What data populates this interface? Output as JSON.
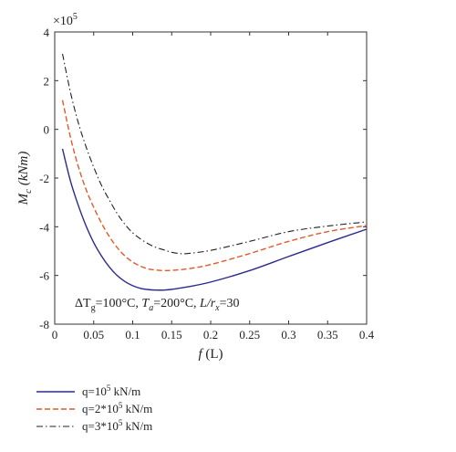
{
  "chart_data": {
    "type": "line",
    "title": "",
    "xlabel": "f (L)",
    "ylabel": "M_c (kNm)",
    "y_multiplier": "×10^5",
    "xlim": [
      0,
      0.4
    ],
    "ylim": [
      -8,
      4
    ],
    "x_ticks": [
      0,
      0.05,
      0.1,
      0.15,
      0.2,
      0.25,
      0.3,
      0.35,
      0.4
    ],
    "x_tick_labels": [
      "0",
      "0.05",
      "0.1",
      "0.15",
      "0.2",
      "0.25",
      "0.3",
      "0.35",
      "0.4"
    ],
    "y_ticks": [
      -8,
      -6,
      -4,
      -2,
      0,
      2,
      4
    ],
    "y_tick_labels": [
      "-8",
      "-6",
      "-4",
      "-2",
      "0",
      "2",
      "4"
    ],
    "grid": false,
    "legend_placement": "below",
    "annotation": "ΔT_g=100°C, T_a=200°C, L/r_x=30",
    "series": [
      {
        "name": "q=10^5 kN/m",
        "color": "#2b2a8f",
        "dash": "solid",
        "x": [
          0.01,
          0.02,
          0.03,
          0.04,
          0.05,
          0.06,
          0.07,
          0.08,
          0.09,
          0.1,
          0.11,
          0.12,
          0.13,
          0.14,
          0.15,
          0.17,
          0.2,
          0.25,
          0.3,
          0.35,
          0.4
        ],
        "y": [
          -0.8,
          -2.1,
          -3.1,
          -3.95,
          -4.65,
          -5.2,
          -5.65,
          -6.0,
          -6.25,
          -6.42,
          -6.53,
          -6.58,
          -6.6,
          -6.6,
          -6.57,
          -6.47,
          -6.27,
          -5.8,
          -5.22,
          -4.65,
          -4.1
        ]
      },
      {
        "name": "q=2*10^5 kN/m",
        "color": "#e05a2a",
        "dash": "dashed",
        "x": [
          0.01,
          0.02,
          0.03,
          0.04,
          0.05,
          0.06,
          0.07,
          0.08,
          0.09,
          0.1,
          0.11,
          0.12,
          0.13,
          0.14,
          0.15,
          0.17,
          0.2,
          0.25,
          0.3,
          0.35,
          0.4
        ],
        "y": [
          1.2,
          -0.3,
          -1.5,
          -2.45,
          -3.2,
          -3.85,
          -4.4,
          -4.85,
          -5.2,
          -5.45,
          -5.62,
          -5.73,
          -5.78,
          -5.8,
          -5.79,
          -5.73,
          -5.55,
          -5.1,
          -4.6,
          -4.2,
          -3.95
        ]
      },
      {
        "name": "q=3*10^5 kN/m",
        "color": "#222222",
        "dash": "dashdot",
        "x": [
          0.01,
          0.02,
          0.03,
          0.04,
          0.05,
          0.06,
          0.07,
          0.08,
          0.09,
          0.1,
          0.11,
          0.12,
          0.13,
          0.14,
          0.15,
          0.16,
          0.17,
          0.2,
          0.25,
          0.3,
          0.35,
          0.4
        ],
        "y": [
          3.1,
          1.55,
          0.3,
          -0.7,
          -1.55,
          -2.3,
          -2.9,
          -3.45,
          -3.9,
          -4.25,
          -4.5,
          -4.7,
          -4.85,
          -4.95,
          -5.05,
          -5.1,
          -5.1,
          -4.97,
          -4.6,
          -4.2,
          -3.97,
          -3.8
        ]
      }
    ]
  },
  "legend": {
    "items": [
      {
        "base": "q=10",
        "sup": "5",
        "rest": " kN/m"
      },
      {
        "base": "q=2*10",
        "sup": "5",
        "rest": " kN/m"
      },
      {
        "base": "q=3*10",
        "sup": "5",
        "rest": " kN/m"
      }
    ]
  },
  "labels": {
    "multiplier_prefix": "×10",
    "multiplier_sup": "5",
    "ylabel_main": "M",
    "ylabel_sub": "c",
    "ylabel_unit": " (kNm)",
    "xlabel_main": "f",
    "xlabel_unit": " (L)",
    "ann_dt": "ΔT",
    "ann_g": "g",
    "ann_mid1": "=100°C, ",
    "ann_t": "T",
    "ann_a": "a",
    "ann_mid2": "=200°C, ",
    "ann_l": "L/r",
    "ann_x": "x",
    "ann_end": "=30"
  }
}
